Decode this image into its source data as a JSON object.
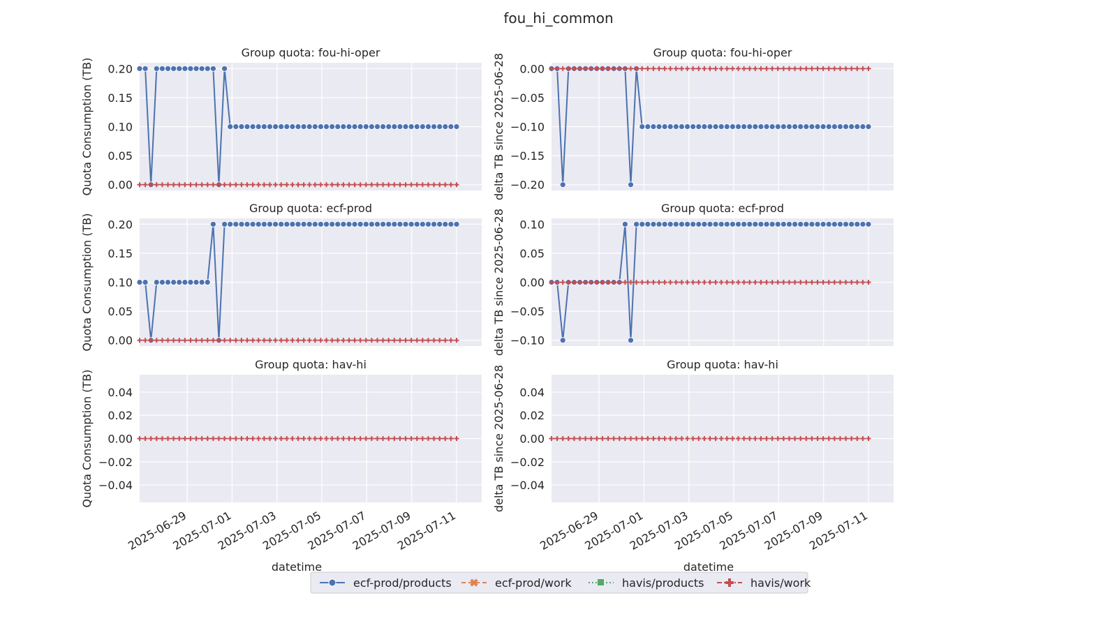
{
  "figure": {
    "suptitle": "fou_hi_common",
    "xlabel": "datetime",
    "x_ticks": [
      "2025-06-29",
      "2025-07-01",
      "2025-07-03",
      "2025-07-05",
      "2025-07-07",
      "2025-07-09",
      "2025-07-11"
    ]
  },
  "legend": {
    "placement": "bottom-center",
    "entries": [
      {
        "label": "ecf-prod/products",
        "color": "#4c72b0",
        "marker": "circle",
        "linestyle": "solid"
      },
      {
        "label": "ecf-prod/work",
        "color": "#dd8452",
        "marker": "x",
        "linestyle": "dashed"
      },
      {
        "label": "havis/products",
        "color": "#55a868",
        "marker": "square",
        "linestyle": "dotted"
      },
      {
        "label": "havis/work",
        "color": "#c44e52",
        "marker": "plus",
        "linestyle": "dashdot"
      }
    ]
  },
  "chart_data": [
    {
      "type": "line",
      "title": "Group quota: fou-hi-oper",
      "ylabel": "Quota Consumption (TB)",
      "xlabel": "",
      "ylim": [
        -0.01,
        0.21
      ],
      "y_ticks": [
        "0.00",
        "0.05",
        "0.10",
        "0.15",
        "0.20"
      ],
      "grid": true,
      "series": [
        {
          "name": "ecf-prod/products",
          "values": [
            0.2,
            0.2,
            0.0,
            0.2,
            0.2,
            0.2,
            0.2,
            0.2,
            0.2,
            0.2,
            0.2,
            0.2,
            0.2,
            0.2,
            0.0,
            0.2,
            0.1,
            0.1,
            0.1,
            0.1,
            0.1,
            0.1,
            0.1
          ]
        },
        {
          "name": "havis/work",
          "values": [
            0.0
          ]
        }
      ]
    },
    {
      "type": "line",
      "title": "Group quota: fou-hi-oper",
      "ylabel": "delta TB since 2025-06-28",
      "xlabel": "",
      "ylim": [
        -0.21,
        0.01
      ],
      "y_ticks": [
        "0.00",
        "−0.05",
        "−0.10",
        "−0.15",
        "−0.20"
      ],
      "grid": true,
      "series": [
        {
          "name": "ecf-prod/products",
          "values": [
            0.0,
            0.0,
            -0.2,
            0.0,
            0.0,
            0.0,
            0.0,
            0.0,
            0.0,
            0.0,
            0.0,
            0.0,
            0.0,
            0.0,
            -0.2,
            0.0,
            -0.1,
            -0.1,
            -0.1,
            -0.1,
            -0.1,
            -0.1,
            -0.1
          ]
        },
        {
          "name": "havis/work",
          "values": [
            0.0
          ]
        }
      ]
    },
    {
      "type": "line",
      "title": "Group quota: ecf-prod",
      "ylabel": "Quota Consumption (TB)",
      "xlabel": "",
      "ylim": [
        -0.01,
        0.21
      ],
      "y_ticks": [
        "0.00",
        "0.05",
        "0.10",
        "0.15",
        "0.20"
      ],
      "grid": true,
      "series": [
        {
          "name": "ecf-prod/products",
          "values": [
            0.1,
            0.1,
            0.0,
            0.1,
            0.1,
            0.1,
            0.1,
            0.1,
            0.1,
            0.1,
            0.1,
            0.1,
            0.1,
            0.2,
            0.0,
            0.2,
            0.2,
            0.2,
            0.2,
            0.2,
            0.2,
            0.2,
            0.2
          ]
        },
        {
          "name": "havis/work",
          "values": [
            0.0
          ]
        }
      ]
    },
    {
      "type": "line",
      "title": "Group quota: ecf-prod",
      "ylabel": "delta TB since 2025-06-28",
      "xlabel": "",
      "ylim": [
        -0.11,
        0.11
      ],
      "y_ticks": [
        "0.10",
        "0.05",
        "0.00",
        "−0.05",
        "−0.10"
      ],
      "grid": true,
      "series": [
        {
          "name": "ecf-prod/products",
          "values": [
            0.0,
            0.0,
            -0.1,
            0.0,
            0.0,
            0.0,
            0.0,
            0.0,
            0.0,
            0.0,
            0.0,
            0.0,
            0.0,
            0.1,
            -0.1,
            0.1,
            0.1,
            0.1,
            0.1,
            0.1,
            0.1,
            0.1,
            0.1
          ]
        },
        {
          "name": "havis/work",
          "values": [
            0.0
          ]
        }
      ]
    },
    {
      "type": "line",
      "title": "Group quota: hav-hi",
      "ylabel": "Quota Consumption (TB)",
      "xlabel": "datetime",
      "ylim": [
        -0.055,
        0.055
      ],
      "y_ticks": [
        "0.04",
        "0.02",
        "0.00",
        "−0.02",
        "−0.04"
      ],
      "grid": true,
      "series": [
        {
          "name": "havis/work",
          "values": [
            0.0
          ]
        }
      ]
    },
    {
      "type": "line",
      "title": "Group quota: hav-hi",
      "ylabel": "delta TB since 2025-06-28",
      "xlabel": "datetime",
      "ylim": [
        -0.055,
        0.055
      ],
      "y_ticks": [
        "0.04",
        "0.02",
        "0.00",
        "−0.02",
        "−0.04"
      ],
      "grid": true,
      "series": [
        {
          "name": "havis/work",
          "values": [
            0.0
          ]
        }
      ]
    }
  ]
}
